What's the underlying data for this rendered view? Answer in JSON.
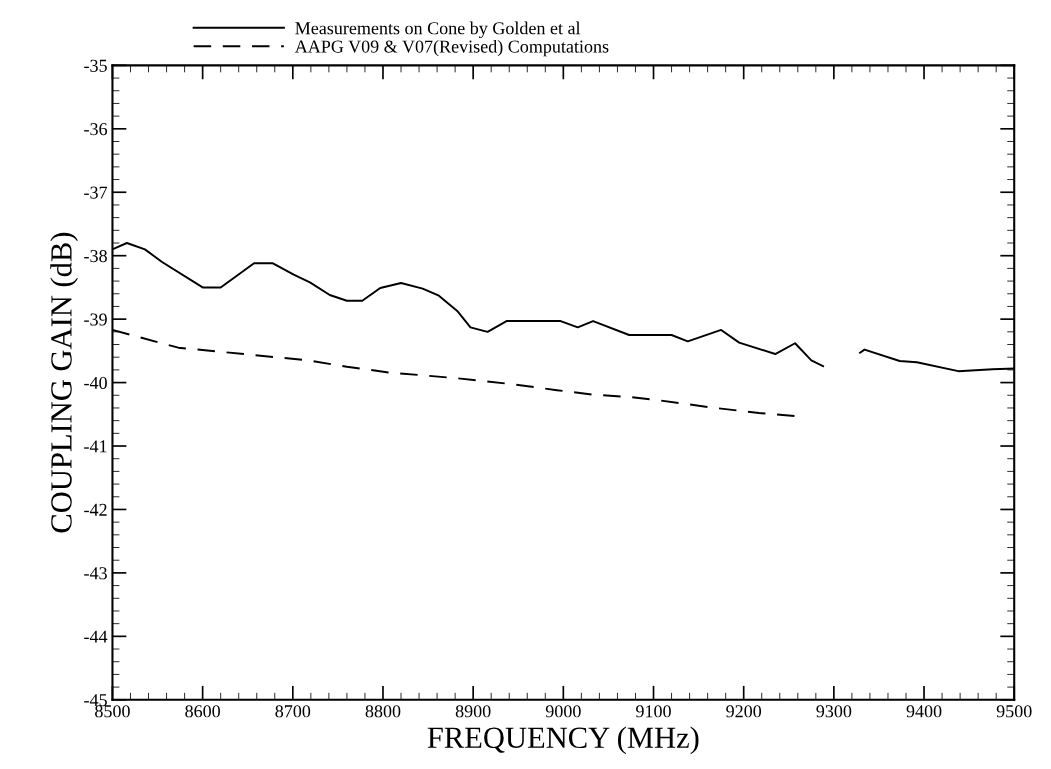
{
  "chart_data": {
    "type": "line",
    "xlabel": "FREQUENCY (MHz)",
    "ylabel": "COUPLING GAIN (dB)",
    "xlim": [
      8500,
      9500
    ],
    "xticks": [
      8500,
      8600,
      8700,
      8800,
      8900,
      9000,
      9100,
      9200,
      9300,
      9400,
      9500
    ],
    "ylim": [
      -45,
      -35
    ],
    "yticks": [
      -45,
      -44,
      -43,
      -42,
      -41,
      -40,
      -39,
      -38,
      -37,
      -36,
      -35
    ],
    "grid": false,
    "legend": "top left",
    "marker": "none",
    "series": [
      {
        "name": "Measurements on Cone by Golden et al",
        "color": "#000000",
        "line_style": "solid",
        "x": [
          8500,
          8516,
          8536,
          8555,
          8600,
          8620,
          8657,
          8678,
          8701,
          8719,
          8741,
          8760,
          8777,
          8797,
          8820,
          8844,
          8862,
          8883,
          8897,
          8916,
          8937,
          8997,
          9016,
          9033,
          9073,
          9120,
          9138,
          9175,
          9195,
          9235,
          9257,
          9275,
          9288,
          9310,
          9329,
          9334,
          9373,
          9392,
          9438,
          9476,
          9500
        ],
        "values": [
          -37.9,
          -37.8,
          -37.9,
          -38.1,
          -38.5,
          -38.5,
          -38.12,
          -38.12,
          -38.3,
          -38.42,
          -38.62,
          -38.71,
          -38.71,
          -38.51,
          -38.43,
          -38.52,
          -38.63,
          -38.88,
          -39.13,
          -39.2,
          -39.03,
          -39.03,
          -39.13,
          -39.03,
          -39.25,
          -39.25,
          -39.35,
          -39.17,
          -39.37,
          -39.55,
          -39.38,
          -39.65,
          -39.74,
          null,
          -39.53,
          -39.48,
          -39.66,
          -39.68,
          -39.82,
          -39.79,
          -39.78
        ]
      },
      {
        "name": "AAPG V09 & V07(Revised) Computations",
        "color": "#000000",
        "line_style": "dashed",
        "x": [
          8500,
          8573,
          8667,
          8717,
          8760,
          8806,
          8881,
          8940,
          8993,
          9033,
          9075,
          9106,
          9163,
          9217,
          9260
        ],
        "values": [
          -39.17,
          -39.45,
          -39.58,
          -39.65,
          -39.75,
          -39.84,
          -39.93,
          -40.02,
          -40.12,
          -40.19,
          -40.23,
          -40.28,
          -40.39,
          -40.48,
          -40.53
        ]
      }
    ]
  }
}
